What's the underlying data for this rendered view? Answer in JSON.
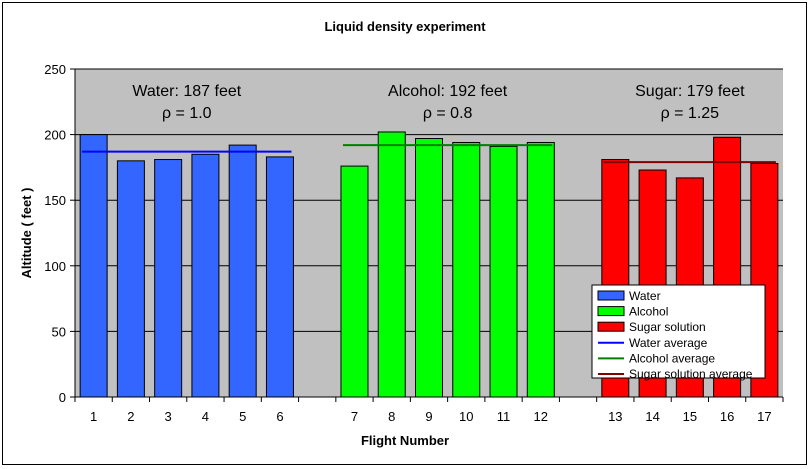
{
  "chart_data": {
    "type": "bar",
    "title": "Liquid density experiment",
    "xlabel": "Flight Number",
    "ylabel": "Altitude ( feet )",
    "ylim": [
      0,
      250
    ],
    "yticks": [
      0,
      50,
      100,
      150,
      200,
      250
    ],
    "grid": true,
    "legend_position": "bottom-right",
    "colors": {
      "plot_background": "#c0c0c0",
      "water": "#3366ff",
      "alcohol": "#00ff00",
      "sugar": "#ff0000",
      "water_average": "#0000ff",
      "alcohol_average": "#008000",
      "sugar_average": "#800000"
    },
    "categories": [
      "1",
      "2",
      "3",
      "4",
      "5",
      "6",
      "",
      "7",
      "8",
      "9",
      "10",
      "11",
      "12",
      "",
      "13",
      "14",
      "15",
      "16",
      "17"
    ],
    "series": [
      {
        "name": "Water",
        "color": "#3366ff",
        "values": [
          200,
          180,
          181,
          185,
          192,
          183,
          null,
          null,
          null,
          null,
          null,
          null,
          null,
          null,
          null,
          null,
          null,
          null,
          null
        ]
      },
      {
        "name": "Alcohol",
        "color": "#00ff00",
        "values": [
          null,
          null,
          null,
          null,
          null,
          null,
          null,
          176,
          202,
          197,
          194,
          191,
          194,
          null,
          null,
          null,
          null,
          null,
          null
        ]
      },
      {
        "name": "Sugar solution",
        "color": "#ff0000",
        "values": [
          null,
          null,
          null,
          null,
          null,
          null,
          null,
          null,
          null,
          null,
          null,
          null,
          null,
          null,
          181,
          173,
          167,
          198,
          178
        ]
      }
    ],
    "averages": [
      {
        "name": "Water average",
        "value": 187,
        "from": 0,
        "to": 5,
        "color": "#0000ff"
      },
      {
        "name": "Alcohol average",
        "value": 192,
        "from": 7,
        "to": 12,
        "color": "#008000"
      },
      {
        "name": "Sugar solution average",
        "value": 179,
        "from": 14,
        "to": 18,
        "color": "#800000"
      }
    ],
    "annotations": [
      {
        "line1": "Water: 187 feet",
        "line2": "ρ = 1.0",
        "center_index": 2.5
      },
      {
        "line1": "Alcohol: 192 feet",
        "line2": "ρ = 0.8",
        "center_index": 9.5
      },
      {
        "line1": "Sugar: 179 feet",
        "line2": "ρ = 1.25",
        "center_index": 16
      }
    ]
  }
}
